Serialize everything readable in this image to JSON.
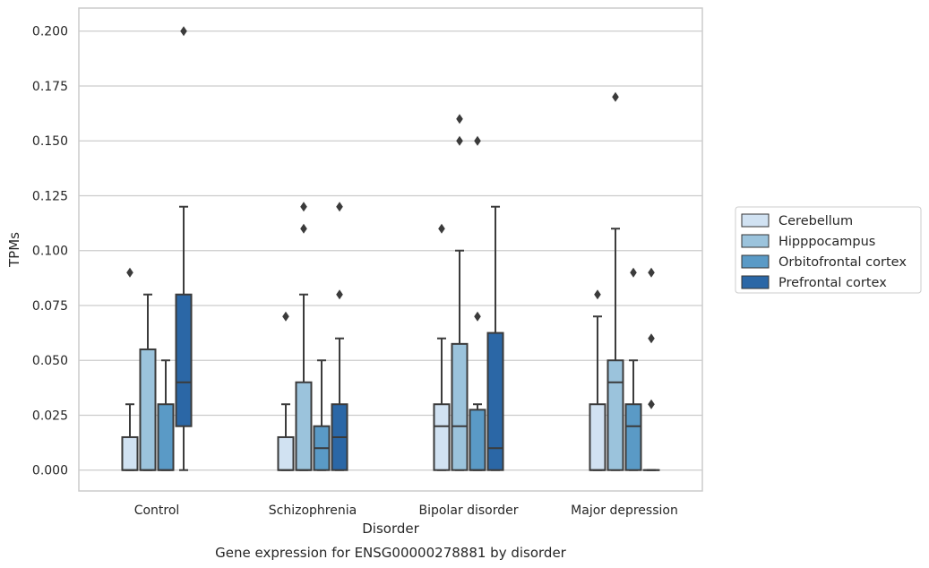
{
  "chart_data": {
    "type": "box",
    "title": "",
    "caption": "Gene expression for ENSG00000278881 by disorder",
    "xlabel": "Disorder",
    "ylabel": "TPMs",
    "ylim": [
      -0.0095,
      0.2105
    ],
    "yticks": [
      "0.000",
      "0.025",
      "0.050",
      "0.075",
      "0.100",
      "0.125",
      "0.150",
      "0.175",
      "0.200"
    ],
    "grid": "horizontal",
    "legend_position": "right",
    "categories": [
      "Control",
      "Schizophrenia",
      "Bipolar disorder",
      "Major depression"
    ],
    "series": [
      {
        "name": "Cerebellum",
        "color": "#d1e2f2",
        "boxes": [
          {
            "q1": 0,
            "median": 0,
            "q3": 0.015,
            "whisker_low": 0,
            "whisker_high": 0.03,
            "outliers": [
              0.09
            ]
          },
          {
            "q1": 0,
            "median": 0,
            "q3": 0.015,
            "whisker_low": 0,
            "whisker_high": 0.03,
            "outliers": [
              0.07
            ]
          },
          {
            "q1": 0,
            "median": 0.02,
            "q3": 0.03,
            "whisker_low": 0,
            "whisker_high": 0.06,
            "outliers": [
              0.11
            ]
          },
          {
            "q1": 0,
            "median": 0,
            "q3": 0.03,
            "whisker_low": 0,
            "whisker_high": 0.07,
            "outliers": [
              0.08
            ]
          }
        ]
      },
      {
        "name": "Hipppocampus",
        "color": "#9bc3dc",
        "boxes": [
          {
            "q1": 0,
            "median": 0,
            "q3": 0.055,
            "whisker_low": 0,
            "whisker_high": 0.08,
            "outliers": []
          },
          {
            "q1": 0,
            "median": 0,
            "q3": 0.04,
            "whisker_low": 0,
            "whisker_high": 0.08,
            "outliers": [
              0.11,
              0.12
            ]
          },
          {
            "q1": 0,
            "median": 0.02,
            "q3": 0.0575,
            "whisker_low": 0,
            "whisker_high": 0.1,
            "outliers": [
              0.15,
              0.16
            ]
          },
          {
            "q1": 0,
            "median": 0.04,
            "q3": 0.05,
            "whisker_low": 0,
            "whisker_high": 0.11,
            "outliers": [
              0.17
            ]
          }
        ]
      },
      {
        "name": "Orbitofrontal cortex",
        "color": "#5a9ac6",
        "boxes": [
          {
            "q1": 0,
            "median": 0,
            "q3": 0.03,
            "whisker_low": 0,
            "whisker_high": 0.05,
            "outliers": []
          },
          {
            "q1": 0,
            "median": 0.01,
            "q3": 0.02,
            "whisker_low": 0,
            "whisker_high": 0.05,
            "outliers": []
          },
          {
            "q1": 0,
            "median": 0,
            "q3": 0.0275,
            "whisker_low": 0,
            "whisker_high": 0.03,
            "outliers": [
              0.07,
              0.15
            ]
          },
          {
            "q1": 0,
            "median": 0.02,
            "q3": 0.03,
            "whisker_low": 0,
            "whisker_high": 0.05,
            "outliers": [
              0.09
            ]
          }
        ]
      },
      {
        "name": "Prefrontal cortex",
        "color": "#2b67a6",
        "boxes": [
          {
            "q1": 0.02,
            "median": 0.04,
            "q3": 0.08,
            "whisker_low": 0,
            "whisker_high": 0.12,
            "outliers": [
              0.2
            ]
          },
          {
            "q1": 0,
            "median": 0.015,
            "q3": 0.03,
            "whisker_low": 0,
            "whisker_high": 0.06,
            "outliers": [
              0.08,
              0.12
            ]
          },
          {
            "q1": 0,
            "median": 0.01,
            "q3": 0.0625,
            "whisker_low": 0,
            "whisker_high": 0.12,
            "outliers": []
          },
          {
            "q1": 0,
            "median": 0,
            "q3": 0,
            "whisker_low": 0,
            "whisker_high": 0,
            "outliers": [
              0.03,
              0.06,
              0.09
            ]
          }
        ]
      }
    ]
  }
}
